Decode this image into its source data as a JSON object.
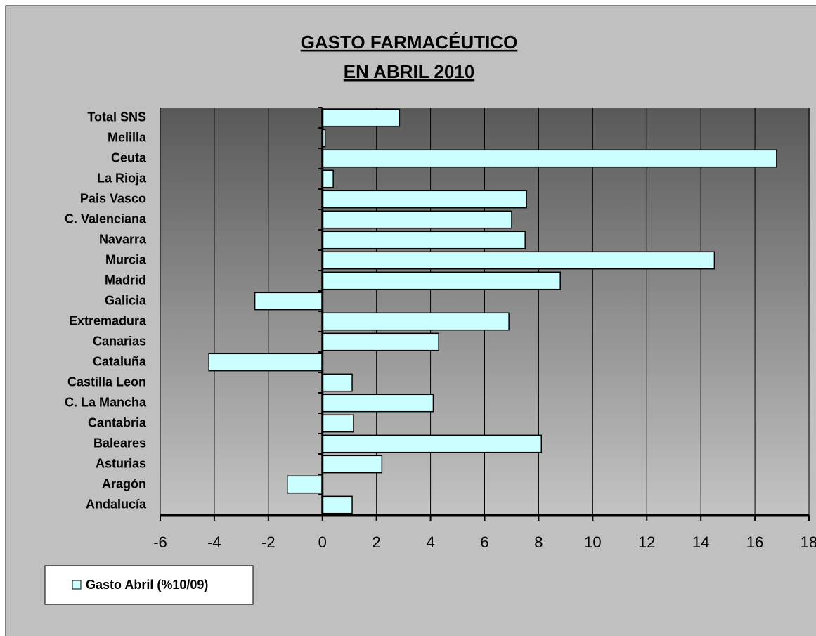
{
  "chart_data": {
    "type": "bar",
    "orientation": "horizontal",
    "title": "GASTO FARMACÉUTICO",
    "subtitle": "EN ABRIL 2010",
    "categories": [
      "Total SNS",
      "Melilla",
      "Ceuta",
      "La Rioja",
      "Pais Vasco",
      "C. Valenciana",
      "Navarra",
      "Murcia",
      "Madrid",
      "Galicia",
      "Extremadura",
      "Canarias",
      "Cataluña",
      "Castilla Leon",
      "C. La Mancha",
      "Cantabria",
      "Baleares",
      "Asturias",
      "Aragón",
      "Andalucía"
    ],
    "series": [
      {
        "name": "Gasto Abril (%10/09)",
        "color": "#ccffff",
        "values": [
          2.85,
          0.1,
          16.8,
          0.4,
          7.55,
          7.0,
          7.5,
          14.5,
          8.8,
          -2.5,
          6.9,
          4.3,
          -4.2,
          1.1,
          4.1,
          1.15,
          8.1,
          2.2,
          -1.3,
          1.1
        ]
      }
    ],
    "xlim": [
      -6,
      18
    ],
    "xticks": [
      -6,
      -4,
      -2,
      0,
      2,
      4,
      6,
      8,
      10,
      12,
      14,
      16,
      18
    ],
    "grid": true,
    "legend": "bottom-left"
  }
}
